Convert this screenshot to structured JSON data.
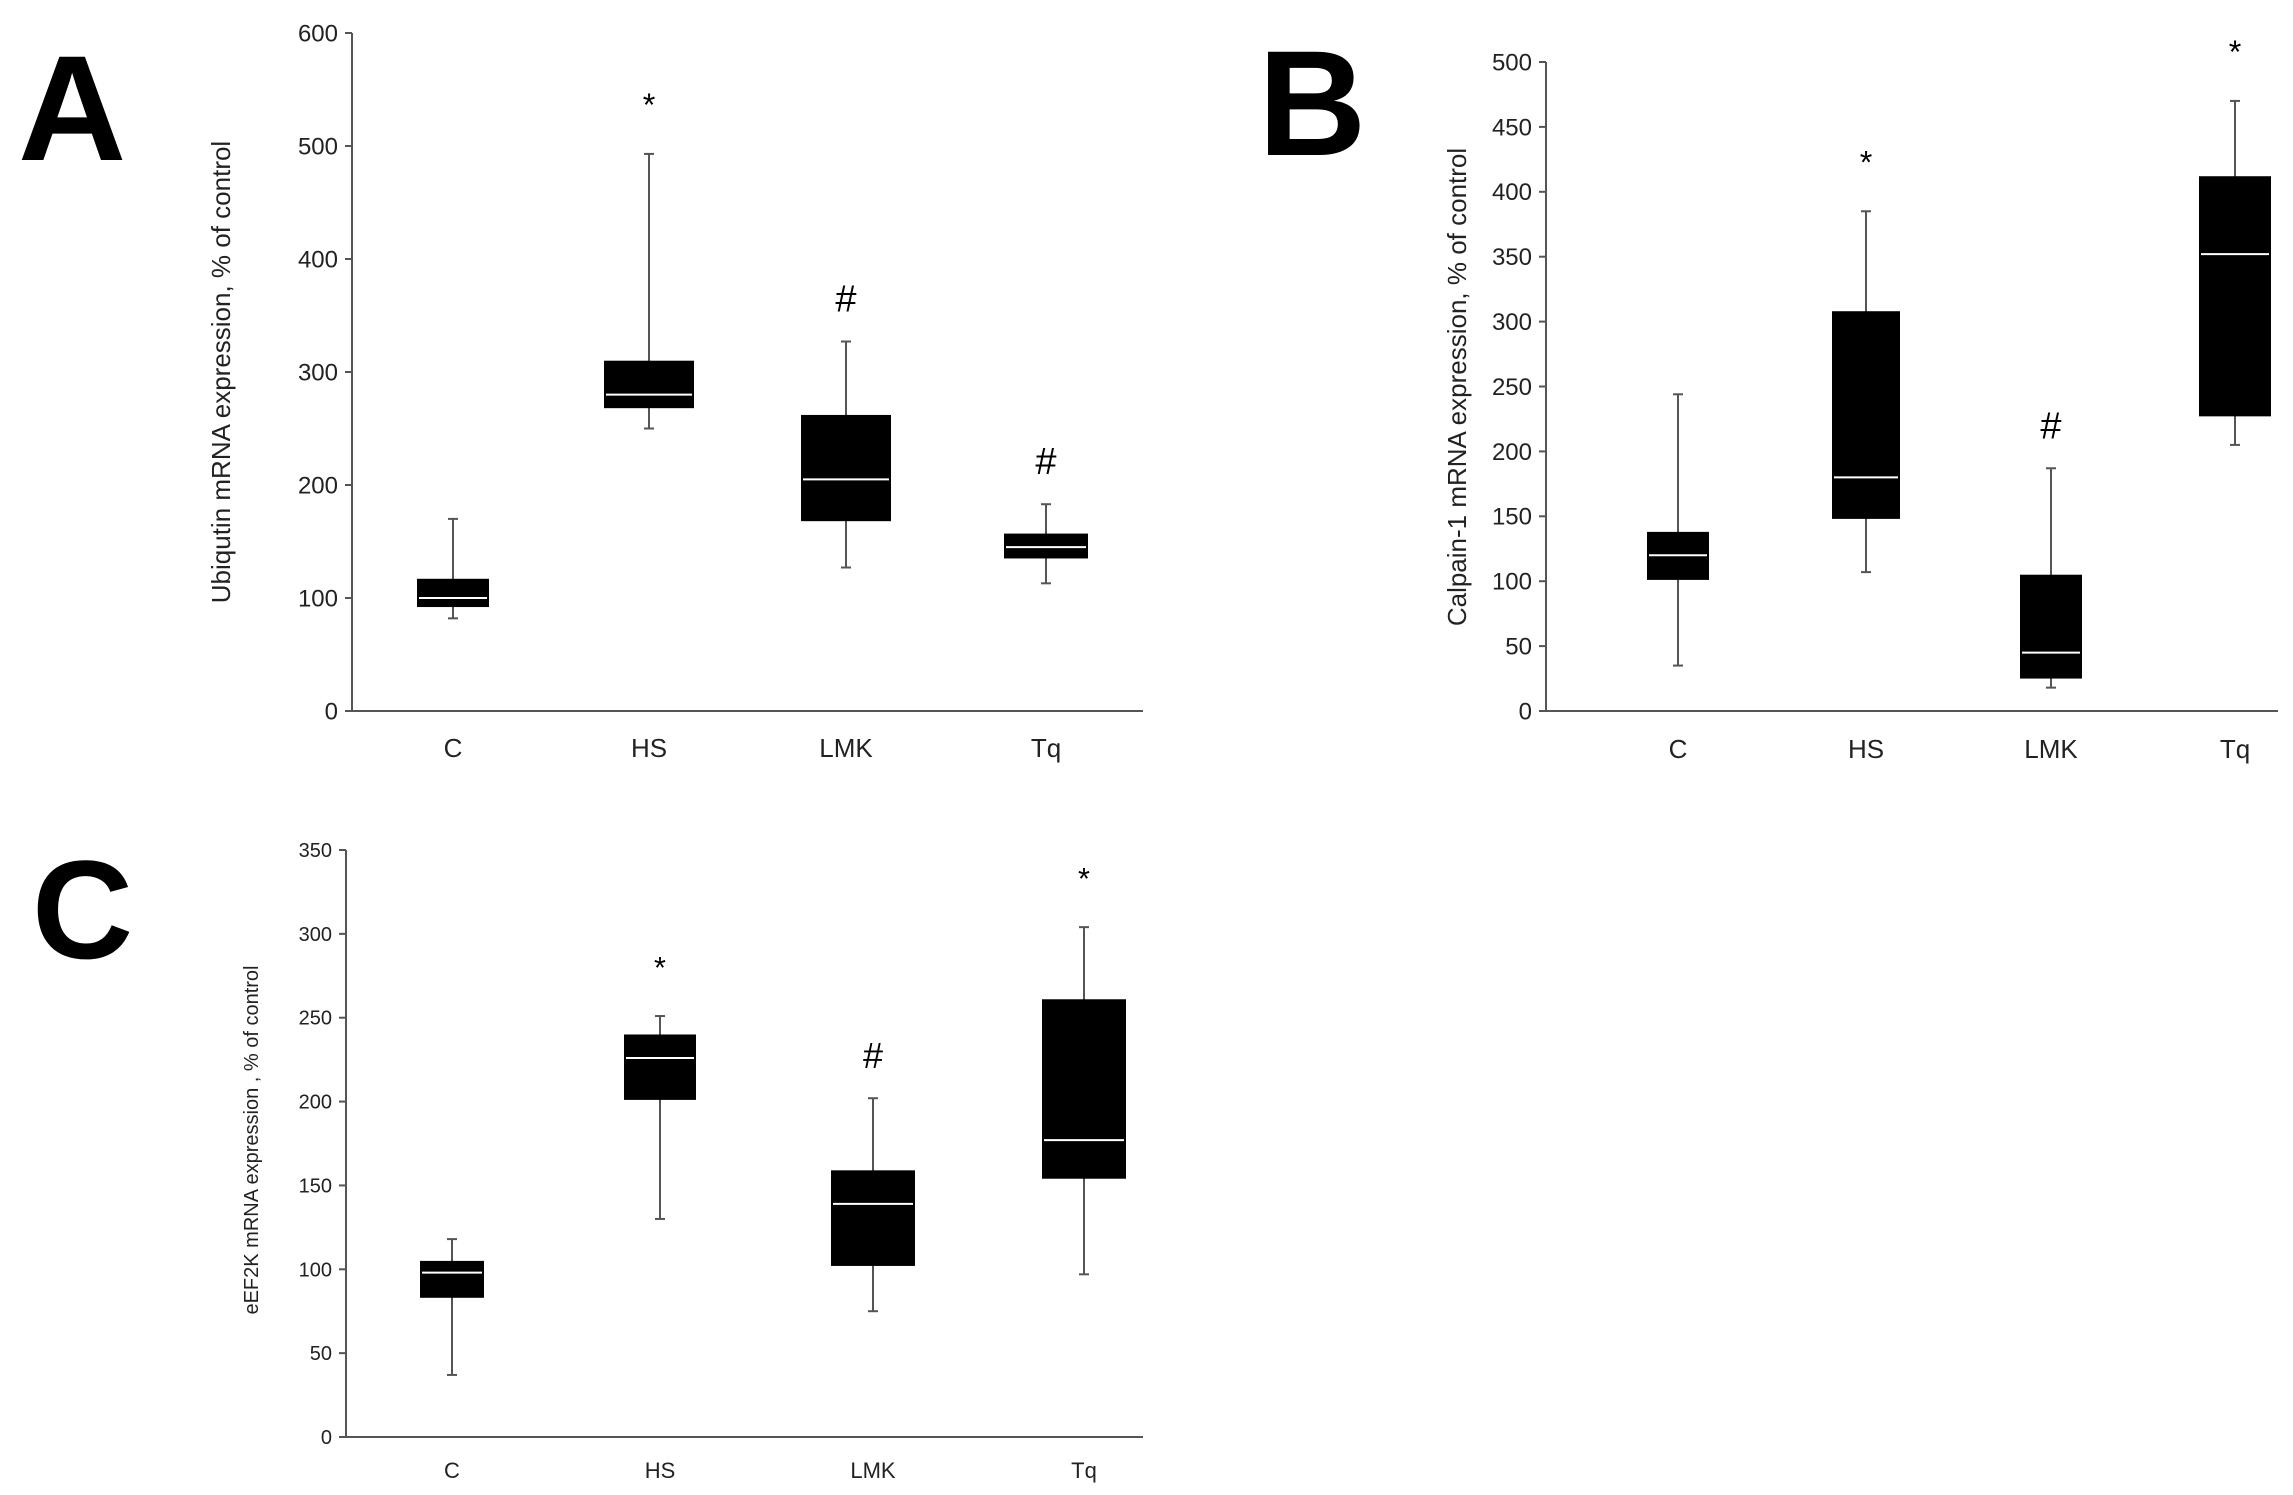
{
  "colors": {
    "box": "#000000",
    "median": "#ffffff",
    "axis": "#555555",
    "whisker": "#555555",
    "text": "#222222"
  },
  "chart_data": [
    {
      "id": "A",
      "type": "box",
      "panel_label": "A",
      "ylabel": "Ubiqutin mRNA expression, % of control",
      "ylim": [
        0,
        600
      ],
      "yticks": [
        0,
        100,
        200,
        300,
        400,
        500,
        600
      ],
      "categories": [
        "C",
        "HS",
        "LMK",
        "Tq"
      ],
      "boxes": [
        {
          "min": 82,
          "q1": 92,
          "median": 100,
          "q3": 117,
          "max": 170,
          "annotation": ""
        },
        {
          "min": 250,
          "q1": 268,
          "median": 280,
          "q3": 310,
          "max": 493,
          "annotation": "*"
        },
        {
          "min": 127,
          "q1": 168,
          "median": 205,
          "q3": 262,
          "max": 327,
          "annotation": "#"
        },
        {
          "min": 113,
          "q1": 135,
          "median": 145,
          "q3": 157,
          "max": 183,
          "annotation": "#"
        }
      ]
    },
    {
      "id": "B",
      "type": "box",
      "panel_label": "B",
      "ylabel": "Calpain-1 mRNA expression, % of control",
      "ylim": [
        0,
        500
      ],
      "yticks": [
        0,
        50,
        100,
        150,
        200,
        250,
        300,
        350,
        400,
        450,
        500
      ],
      "categories": [
        "C",
        "HS",
        "LMK",
        "Tq"
      ],
      "boxes": [
        {
          "min": 35,
          "q1": 101,
          "median": 120,
          "q3": 138,
          "max": 244,
          "annotation": ""
        },
        {
          "min": 107,
          "q1": 148,
          "median": 180,
          "q3": 308,
          "max": 385,
          "annotation": "*"
        },
        {
          "min": 18,
          "q1": 25,
          "median": 45,
          "q3": 105,
          "max": 187,
          "annotation": "#"
        },
        {
          "min": 205,
          "q1": 227,
          "median": 352,
          "q3": 412,
          "max": 470,
          "annotation": "*"
        }
      ]
    },
    {
      "id": "C",
      "type": "box",
      "panel_label": "C",
      "ylabel": "eEF2K mRNA expression , % of control",
      "ylim": [
        0,
        350
      ],
      "yticks": [
        0,
        50,
        100,
        150,
        200,
        250,
        300,
        350
      ],
      "categories": [
        "C",
        "HS",
        "LMK",
        "Tq"
      ],
      "boxes": [
        {
          "min": 37,
          "q1": 83,
          "median": 98,
          "q3": 105,
          "max": 118,
          "annotation": ""
        },
        {
          "min": 130,
          "q1": 201,
          "median": 226,
          "q3": 240,
          "max": 251,
          "annotation": "*"
        },
        {
          "min": 75,
          "q1": 102,
          "median": 139,
          "q3": 159,
          "max": 202,
          "annotation": "#"
        },
        {
          "min": 97,
          "q1": 154,
          "median": 177,
          "q3": 261,
          "max": 304,
          "annotation": "*"
        }
      ]
    }
  ]
}
